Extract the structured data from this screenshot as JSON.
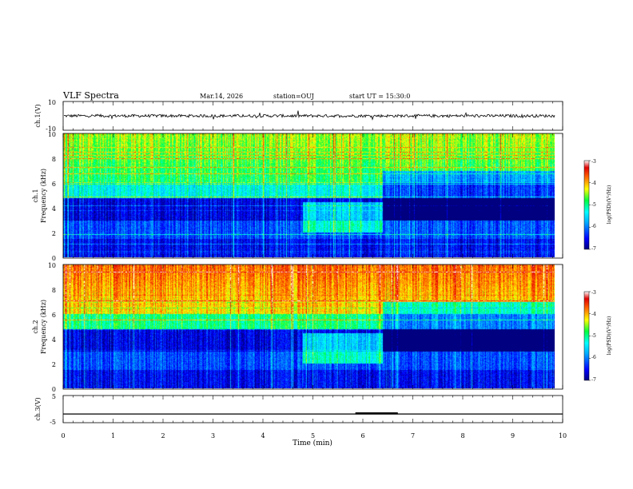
{
  "header": {
    "title": "VLF Spectra",
    "date": "Mar.14, 2026",
    "station": "station=OUJ",
    "start_ut": "start UT =  15:30:0"
  },
  "chart_data": [
    {
      "type": "line",
      "name": "ch1-waveform",
      "ylabel": "ch.1(V)",
      "ylim": [
        -10,
        10
      ],
      "yticks": [
        "10",
        "-10"
      ],
      "baseline": 0,
      "noise_amplitude": 2
    },
    {
      "type": "heatmap",
      "name": "ch1-spectrogram",
      "ylabel": "ch.1\nFrequency (kHz)",
      "ylim": [
        0,
        10
      ],
      "yticks": [
        "0",
        "2",
        "4",
        "6",
        "8",
        "10"
      ],
      "colorbar": {
        "label": "log(PSD)(V²/Hz)",
        "range": [
          -7,
          -3
        ],
        "ticks": [
          "-3",
          "-4",
          "-5",
          "-6",
          "-7"
        ]
      }
    },
    {
      "type": "heatmap",
      "name": "ch2-spectrogram",
      "ylabel": "ch.2\nFrequency (kHz)",
      "ylim": [
        0,
        10
      ],
      "yticks": [
        "0",
        "2",
        "4",
        "6",
        "8",
        "10"
      ],
      "colorbar": {
        "label": "log(PSD)(V²/Hz)",
        "range": [
          -7,
          -3
        ],
        "ticks": [
          "-3",
          "-4",
          "-5",
          "-6",
          "-7"
        ]
      }
    },
    {
      "type": "line",
      "name": "ch3-trace",
      "ylabel": "ch.3(V)",
      "ylim": [
        -5,
        5
      ],
      "yticks": [
        "5",
        "0",
        "-5"
      ],
      "baseline": -1.8,
      "pulse": {
        "start_min": 5.85,
        "end_min": 6.7,
        "value": -1.5
      }
    }
  ],
  "x_axis": {
    "label": "Time (min)",
    "xlim": [
      0,
      10
    ],
    "ticks": [
      "0",
      "1",
      "2",
      "3",
      "4",
      "5",
      "6",
      "7",
      "8",
      "9",
      "10"
    ],
    "data_end_min": 9.85
  }
}
